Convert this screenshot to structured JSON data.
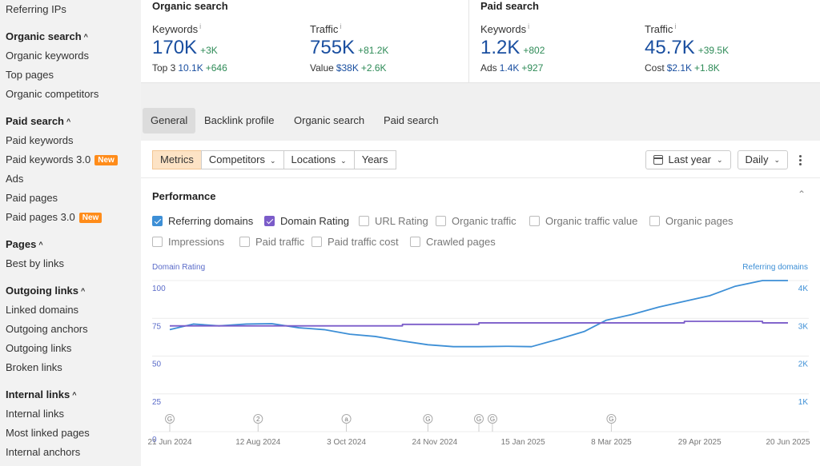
{
  "sidebar": {
    "top_item": "Referring IPs",
    "sections": [
      {
        "title": "Organic search",
        "items": [
          {
            "label": "Organic keywords"
          },
          {
            "label": "Top pages"
          },
          {
            "label": "Organic competitors"
          }
        ]
      },
      {
        "title": "Paid search",
        "items": [
          {
            "label": "Paid keywords"
          },
          {
            "label": "Paid keywords 3.0",
            "badge": "New"
          },
          {
            "label": "Ads"
          },
          {
            "label": "Paid pages"
          },
          {
            "label": "Paid pages 3.0",
            "badge": "New"
          }
        ]
      },
      {
        "title": "Pages",
        "items": [
          {
            "label": "Best by links"
          }
        ]
      },
      {
        "title": "Outgoing links",
        "items": [
          {
            "label": "Linked domains"
          },
          {
            "label": "Outgoing anchors"
          },
          {
            "label": "Outgoing links"
          },
          {
            "label": "Broken links"
          }
        ]
      },
      {
        "title": "Internal links",
        "items": [
          {
            "label": "Internal links"
          },
          {
            "label": "Most linked pages"
          },
          {
            "label": "Internal anchors"
          }
        ]
      }
    ]
  },
  "organic": {
    "title": "Organic search",
    "keywords": {
      "label": "Keywords",
      "info": "i",
      "value": "170K",
      "delta": "+3K",
      "sub_label": "Top 3",
      "sub_value": "10.1K",
      "sub_delta": "+646"
    },
    "traffic": {
      "label": "Traffic",
      "info": "i",
      "value": "755K",
      "delta": "+81.2K",
      "sub_label": "Value",
      "sub_value": "$38K",
      "sub_delta": "+2.6K"
    }
  },
  "paid": {
    "title": "Paid search",
    "keywords": {
      "label": "Keywords",
      "info": "i",
      "value": "1.2K",
      "delta": "+802",
      "sub_label": "Ads",
      "sub_value": "1.4K",
      "sub_delta": "+927"
    },
    "traffic": {
      "label": "Traffic",
      "info": "i",
      "value": "45.7K",
      "delta": "+39.5K",
      "sub_label": "Cost",
      "sub_value": "$2.1K",
      "sub_delta": "+1.8K"
    }
  },
  "tabs": [
    "General",
    "Backlink profile",
    "Organic search",
    "Paid search"
  ],
  "active_tab": "General",
  "toolbar": {
    "metrics": "Metrics",
    "competitors": "Competitors",
    "locations": "Locations",
    "years": "Years",
    "period": "Last year",
    "granularity": "Daily"
  },
  "performance": {
    "title": "Performance",
    "checkboxes": [
      {
        "label": "Referring domains",
        "checked": true,
        "color": "#3d8fd6"
      },
      {
        "label": "Domain Rating",
        "checked": true,
        "color": "#7b5cc9"
      },
      {
        "label": "URL Rating",
        "checked": false
      },
      {
        "label": "Organic traffic",
        "checked": false
      },
      {
        "label": "Organic traffic value",
        "checked": false
      },
      {
        "label": "Organic pages",
        "checked": false
      },
      {
        "label": "Impressions",
        "checked": false
      },
      {
        "label": "Paid traffic",
        "checked": false
      },
      {
        "label": "Paid traffic cost",
        "checked": false
      },
      {
        "label": "Crawled pages",
        "checked": false
      }
    ]
  },
  "chart_data": {
    "type": "line",
    "left_axis_title": "Domain Rating",
    "right_axis_title": "Referring domains",
    "left_ticks": [
      "100",
      "75",
      "50",
      "25",
      "0"
    ],
    "right_ticks": [
      "4K",
      "3K",
      "2K",
      "1K"
    ],
    "left_ylim": [
      0,
      100
    ],
    "right_ylim": [
      0,
      4000
    ],
    "x_labels": [
      "21 Jun 2024",
      "12 Aug 2024",
      "3 Oct 2024",
      "24 Nov 2024",
      "15 Jan 2025",
      "8 Mar 2025",
      "29 Apr 2025",
      "20 Jun 2025"
    ],
    "x": [
      "2024-06-21",
      "2024-07-05",
      "2024-07-20",
      "2024-08-05",
      "2024-08-20",
      "2024-09-05",
      "2024-09-20",
      "2024-10-05",
      "2024-10-20",
      "2024-11-05",
      "2024-11-20",
      "2024-12-05",
      "2024-12-20",
      "2025-01-05",
      "2025-01-20",
      "2025-02-05",
      "2025-02-20",
      "2025-03-05",
      "2025-03-20",
      "2025-04-05",
      "2025-04-20",
      "2025-05-05",
      "2025-05-20",
      "2025-06-05",
      "2025-06-20"
    ],
    "series": [
      {
        "name": "Referring domains",
        "axis": "right",
        "color": "#3d8fd6",
        "values": [
          2700,
          2850,
          2800,
          2850,
          2860,
          2750,
          2700,
          2580,
          2520,
          2400,
          2300,
          2250,
          2250,
          2260,
          2250,
          2450,
          2650,
          2950,
          3100,
          3300,
          3450,
          3600,
          3850,
          4000,
          4000
        ]
      },
      {
        "name": "Domain Rating",
        "axis": "left",
        "color": "#7b5cc9",
        "values": [
          70,
          70,
          70,
          70,
          70,
          70,
          70,
          70,
          70,
          71,
          71,
          71,
          72,
          72,
          72,
          72,
          72,
          72,
          72,
          72,
          73,
          73,
          73,
          72,
          72
        ]
      }
    ],
    "event_markers": [
      {
        "label": "G",
        "x": "2024-06-21"
      },
      {
        "label": "2",
        "x": "2024-08-12"
      },
      {
        "label": "a",
        "x": "2024-10-03"
      },
      {
        "label": "G",
        "x": "2024-11-20"
      },
      {
        "label": "G",
        "x": "2024-12-20"
      },
      {
        "label": "G",
        "x": "2024-12-28"
      },
      {
        "label": "G",
        "x": "2025-03-08"
      }
    ],
    "grid": true,
    "legend": "none"
  }
}
